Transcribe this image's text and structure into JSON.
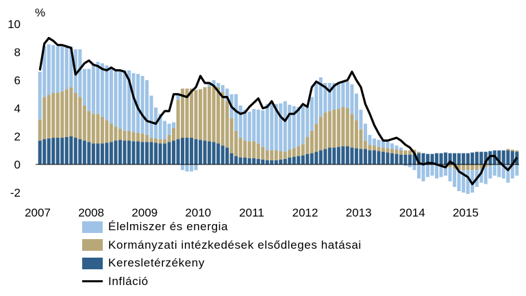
{
  "chart_data": {
    "type": "bar",
    "unit_label": "%",
    "x_tick_labels": [
      "2007",
      "2008",
      "2009",
      "2010",
      "2011",
      "2012",
      "2013",
      "2014",
      "2015"
    ],
    "y_ticks": [
      -2,
      0,
      2,
      4,
      6,
      8,
      10
    ],
    "ylim": [
      -2.2,
      10
    ],
    "grid": false,
    "legend_position": "bottom-left",
    "colors": {
      "food_energy": "#9ec3e6",
      "government": "#b8a878",
      "demand": "#2f5f8a",
      "inflation": "#000000"
    },
    "legend": [
      {
        "key": "food_energy",
        "label": "Élelmiszer és energia",
        "kind": "bar"
      },
      {
        "key": "government",
        "label": "Kormányzati intézkedések elsődleges hatásai",
        "kind": "bar"
      },
      {
        "key": "demand",
        "label": "Keresletérzékeny",
        "kind": "bar"
      },
      {
        "key": "inflation",
        "label": "Infláció",
        "kind": "line"
      }
    ],
    "start": "2007-01",
    "series": [
      {
        "key": "demand",
        "name": "Keresletérzékeny",
        "values": [
          1.7,
          1.8,
          1.85,
          1.9,
          1.9,
          1.9,
          1.95,
          2.0,
          1.9,
          1.8,
          1.7,
          1.6,
          1.5,
          1.5,
          1.5,
          1.55,
          1.6,
          1.7,
          1.75,
          1.7,
          1.7,
          1.65,
          1.65,
          1.6,
          1.6,
          1.6,
          1.55,
          1.5,
          1.5,
          1.6,
          1.7,
          1.8,
          1.9,
          1.9,
          1.9,
          1.8,
          1.75,
          1.7,
          1.65,
          1.6,
          1.5,
          1.35,
          1.2,
          0.8,
          0.6,
          0.5,
          0.5,
          0.45,
          0.45,
          0.4,
          0.35,
          0.3,
          0.3,
          0.3,
          0.35,
          0.4,
          0.5,
          0.55,
          0.6,
          0.65,
          0.75,
          0.8,
          0.9,
          1.0,
          1.1,
          1.2,
          1.2,
          1.25,
          1.3,
          1.3,
          1.2,
          1.15,
          1.1,
          1.1,
          1.0,
          1.0,
          0.95,
          0.9,
          0.85,
          0.8,
          0.75,
          0.7,
          0.7,
          0.7,
          0.75,
          0.8,
          0.8,
          0.75,
          0.75,
          0.8,
          0.8,
          0.85,
          0.8,
          0.8,
          0.8,
          0.8,
          0.8,
          0.85,
          0.9,
          0.9,
          0.9,
          0.95,
          1.0,
          1.0,
          1.0,
          1.0,
          0.95,
          0.9
        ]
      },
      {
        "key": "government",
        "name": "Kormányzati intézkedések elsődleges hatásai",
        "values": [
          1.5,
          3.0,
          3.1,
          3.2,
          3.2,
          3.3,
          3.4,
          3.5,
          3.2,
          3.0,
          2.5,
          2.2,
          2.1,
          2.1,
          1.9,
          1.6,
          1.3,
          1.0,
          0.8,
          0.7,
          0.7,
          0.65,
          0.6,
          0.6,
          0.5,
          0.3,
          0.3,
          0.3,
          0.3,
          0.5,
          0.9,
          2.8,
          3.5,
          3.5,
          3.5,
          3.5,
          3.6,
          3.8,
          3.9,
          4.0,
          4.0,
          3.8,
          3.3,
          2.5,
          1.8,
          1.4,
          1.2,
          1.2,
          1.2,
          1.1,
          0.9,
          0.7,
          0.7,
          0.7,
          0.6,
          0.5,
          0.55,
          0.6,
          0.7,
          0.8,
          1.2,
          1.6,
          2.0,
          2.4,
          2.6,
          2.6,
          2.7,
          2.7,
          2.8,
          2.7,
          2.4,
          2.0,
          1.4,
          0.6,
          0.4,
          0.35,
          0.3,
          0.3,
          0.3,
          0.3,
          0.3,
          0.3,
          0.3,
          0.3,
          0.3,
          0.1,
          0,
          0,
          0,
          0,
          0,
          0,
          -0.2,
          -0.3,
          -0.4,
          -0.4,
          -0.4,
          -0.4,
          -0.4,
          -0.3,
          -0.2,
          -0.1,
          0,
          0,
          0,
          0.1,
          0.1,
          0.1
        ]
      },
      {
        "key": "food_energy",
        "name": "Élelmiszer és energia",
        "values": [
          3.4,
          3.6,
          3.6,
          3.4,
          3.3,
          3.2,
          3.0,
          2.9,
          3.1,
          3.4,
          2.6,
          3.0,
          3.5,
          3.7,
          3.8,
          3.9,
          3.9,
          4.0,
          4.2,
          4.3,
          4.3,
          4.2,
          4.2,
          4.1,
          3.9,
          3.0,
          2.2,
          1.8,
          1.3,
          0.8,
          0.4,
          0.4,
          -0.4,
          -0.5,
          -0.5,
          -0.4,
          0,
          0,
          0.2,
          0.4,
          0.3,
          0.5,
          0.9,
          1.7,
          2.6,
          2.3,
          2.2,
          2.1,
          2.3,
          2.4,
          2.6,
          3.3,
          3.5,
          3.3,
          3.4,
          3.6,
          3.2,
          3.0,
          2.8,
          2.7,
          2.2,
          2.4,
          2.9,
          2.8,
          2.1,
          2.0,
          1.9,
          1.9,
          1.8,
          1.9,
          2.1,
          1.9,
          1.4,
          1.2,
          0.7,
          0.5,
          0.5,
          0.5,
          0.5,
          0.4,
          0.3,
          0.2,
          -0.1,
          -0.2,
          -0.4,
          -1.0,
          -1.2,
          -0.9,
          -0.8,
          -1.0,
          -0.9,
          -0.8,
          -1.0,
          -1.3,
          -1.5,
          -1.6,
          -1.7,
          -1.6,
          -1.2,
          -1.0,
          -1.2,
          -0.9,
          -0.8,
          -0.9,
          -1.0,
          -1.3,
          -1.0,
          -0.8
        ]
      },
      {
        "key": "inflation",
        "name": "Infláció",
        "values": [
          6.7,
          8.6,
          9.0,
          8.8,
          8.5,
          8.5,
          8.4,
          8.3,
          6.4,
          6.8,
          7.2,
          7.4,
          7.1,
          7.0,
          6.8,
          6.7,
          6.9,
          6.7,
          6.7,
          6.6,
          6.0,
          4.8,
          4.0,
          3.5,
          3.1,
          3.0,
          2.9,
          3.4,
          3.8,
          3.8,
          5.0,
          5.0,
          4.9,
          4.8,
          5.2,
          5.5,
          6.3,
          5.8,
          5.8,
          5.6,
          5.2,
          4.8,
          4.8,
          4.1,
          3.8,
          3.6,
          3.7,
          4.1,
          4.4,
          4.7,
          4.0,
          4.1,
          4.5,
          3.9,
          3.4,
          3.1,
          3.6,
          3.6,
          3.9,
          4.3,
          4.1,
          5.5,
          5.9,
          5.7,
          5.5,
          5.2,
          5.6,
          5.8,
          5.9,
          6.0,
          6.6,
          6.0,
          5.5,
          4.3,
          3.6,
          2.8,
          2.2,
          1.7,
          1.7,
          1.8,
          1.9,
          1.7,
          1.4,
          1.2,
          0.8,
          0.1,
          0,
          0.1,
          0.1,
          0,
          -0.1,
          -0.2,
          0.2,
          0,
          -0.5,
          -0.7,
          -0.9,
          -1.4,
          -1.0,
          -0.6,
          0.2,
          0.6,
          0.6,
          0.2,
          -0.1,
          -0.4,
          0,
          0.5
        ]
      }
    ]
  }
}
